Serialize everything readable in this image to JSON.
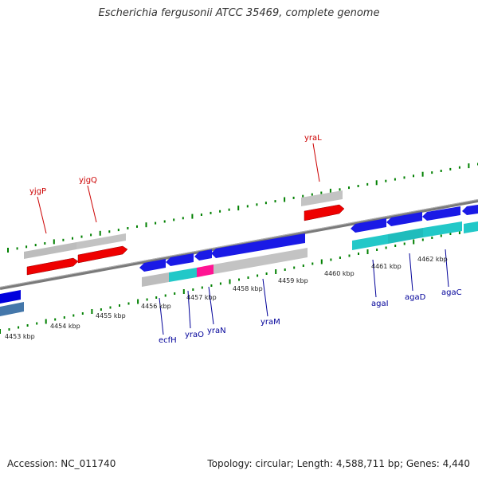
{
  "title": "Escherichia fergusonii ATCC 35469, complete genome",
  "footer": {
    "accession": "Accession: NC_011740",
    "summary": "Topology: circular; Length: 4,588,711 bp; Genes: 4,440"
  },
  "colors": {
    "forward_gene": "#ff0000",
    "reverse_gene": "#0000dd",
    "rna_gene": "#00c8c8",
    "pseudo_gene": "#ff1493",
    "partial_gene": "#4477aa",
    "feature_track": "#bfbfbf",
    "backbone": "#808080",
    "tick": "#008000",
    "forward_label": "#cc0000",
    "reverse_label": "#000099"
  },
  "ruler": {
    "unit": "kbp",
    "labels": [
      "4453 kbp",
      "4454 kbp",
      "4455 kbp",
      "4456 kbp",
      "4457 kbp",
      "4458 kbp",
      "4459 kbp",
      "4460 kbp",
      "4461 kbp",
      "4462 kbp"
    ]
  },
  "forward_genes": [
    {
      "name": "yjgP"
    },
    {
      "name": "yjgQ"
    },
    {
      "name": "yraL"
    }
  ],
  "reverse_genes": [
    {
      "name": "ecfH"
    },
    {
      "name": "yraO"
    },
    {
      "name": "yraN"
    },
    {
      "name": "yraM"
    },
    {
      "name": "agaI"
    },
    {
      "name": "agaD"
    },
    {
      "name": "agaC"
    }
  ]
}
